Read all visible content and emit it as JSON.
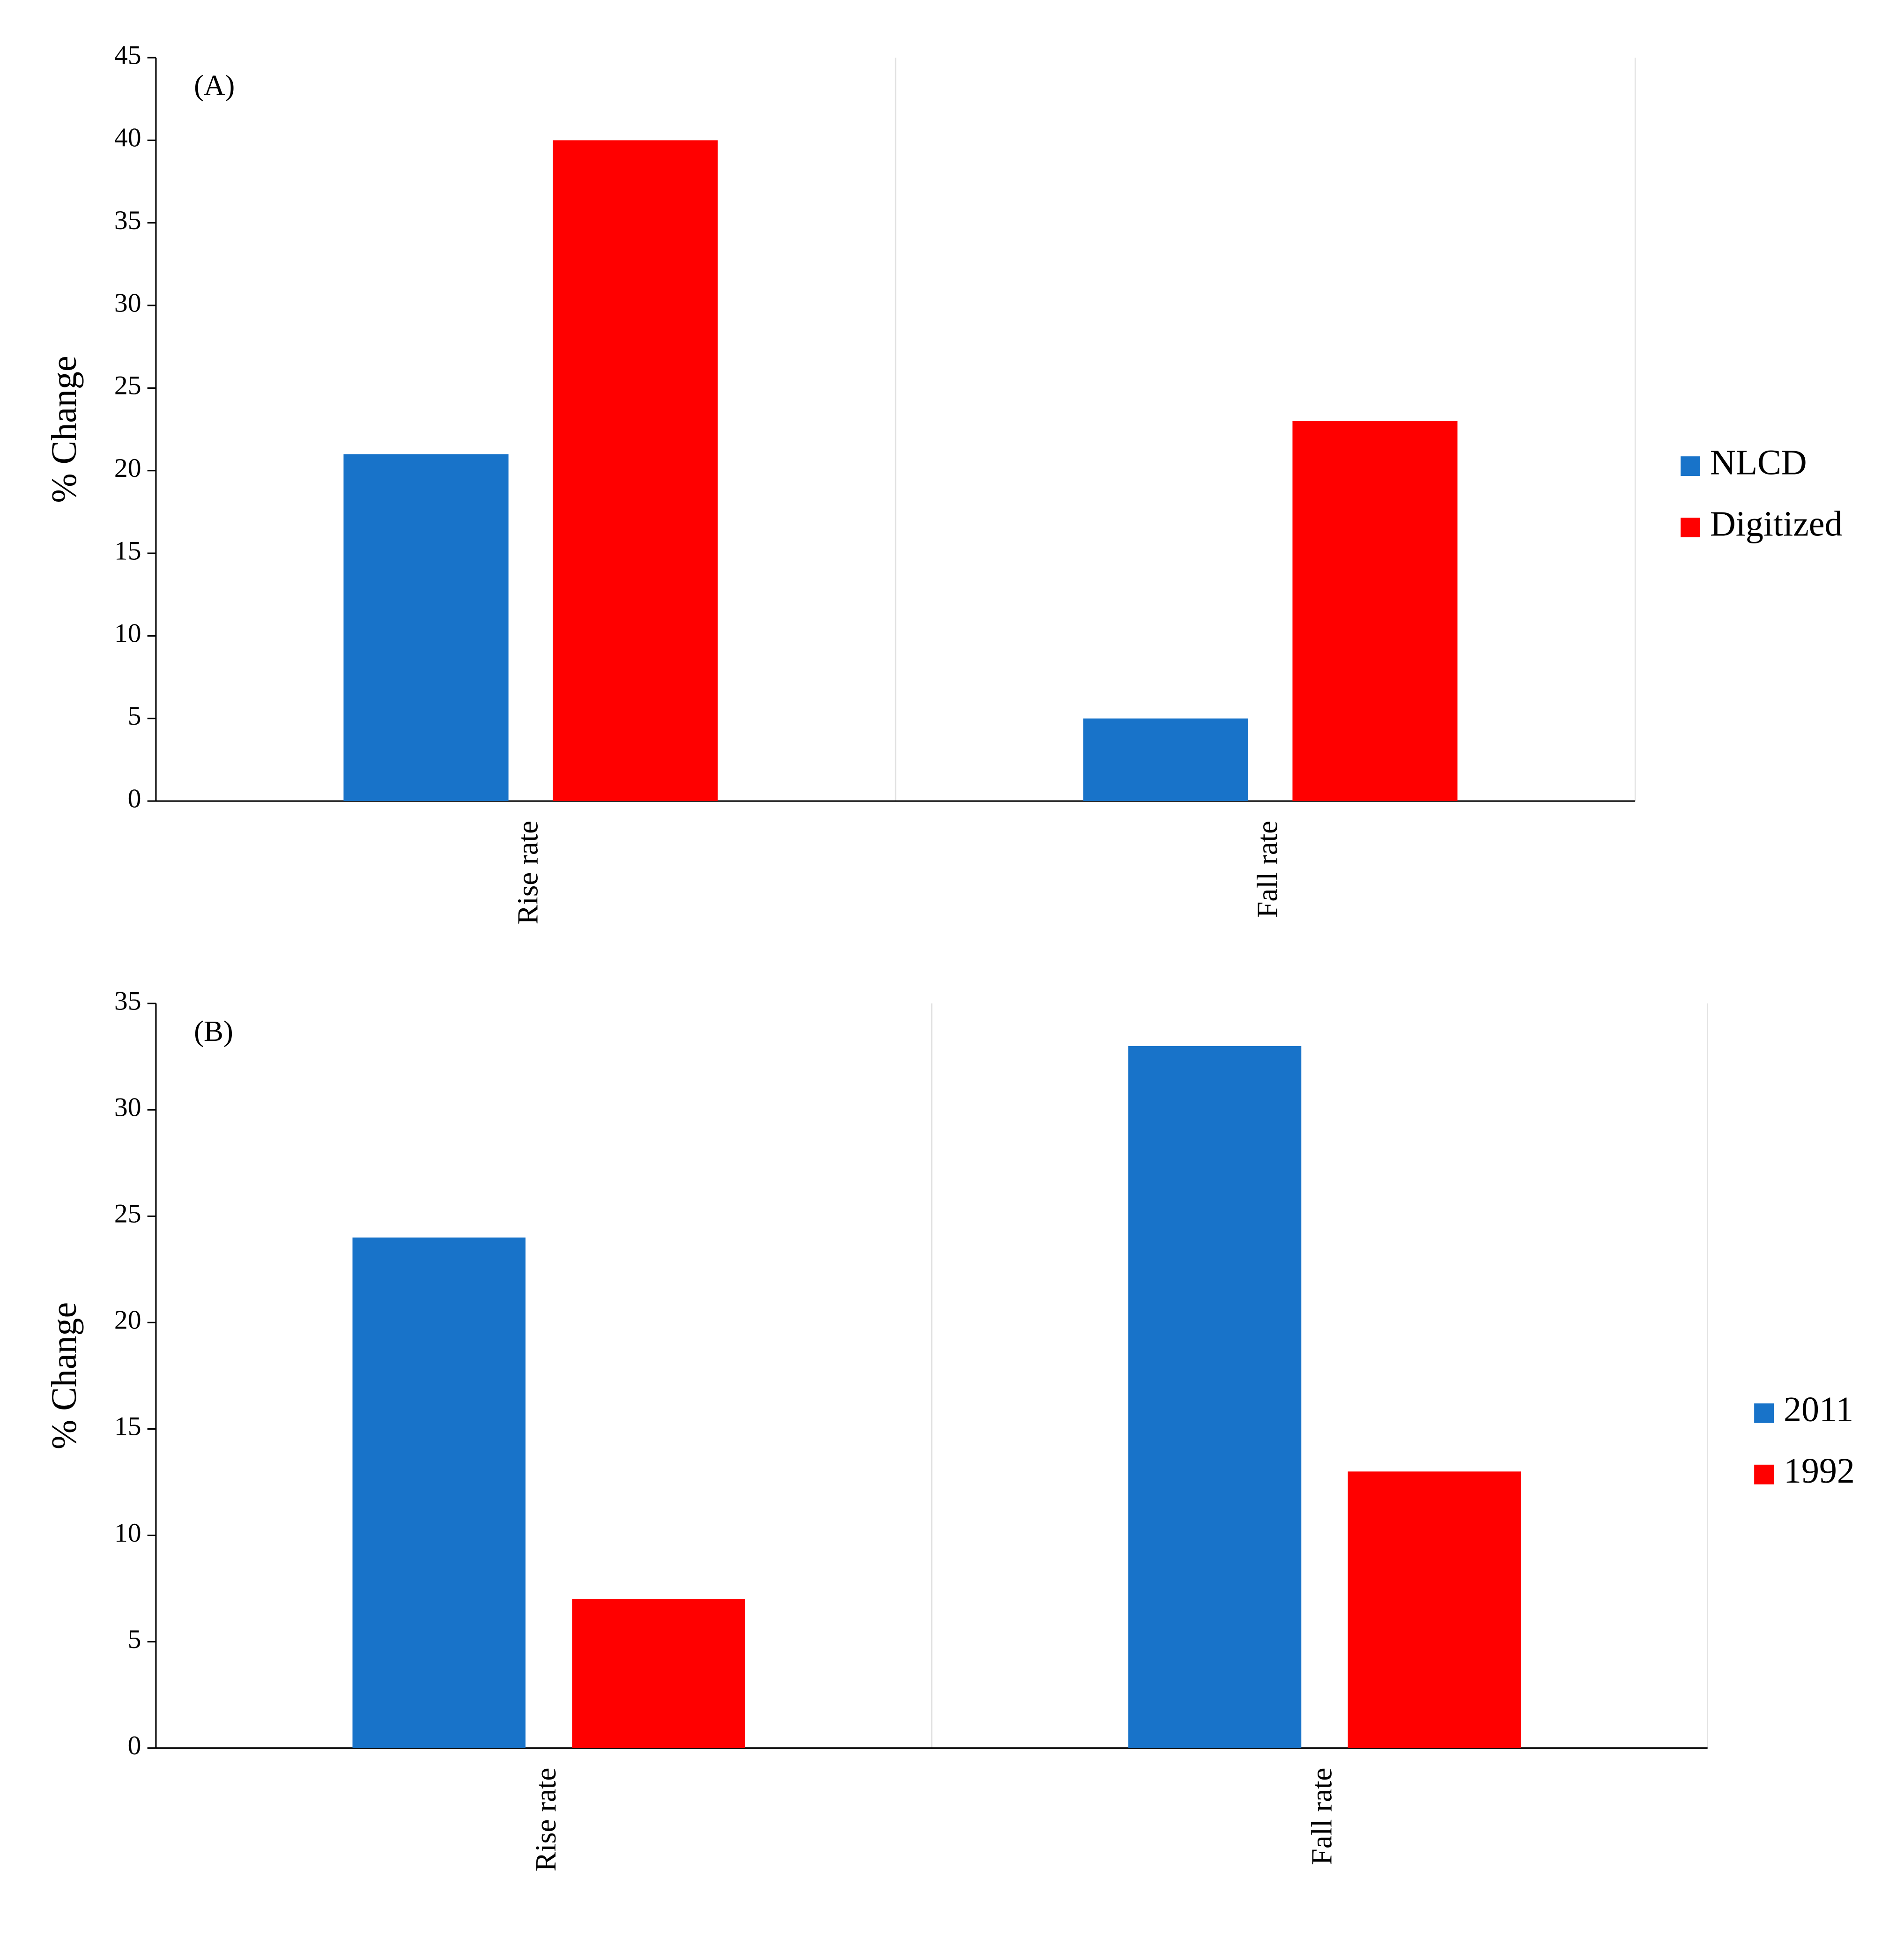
{
  "chart_data": [
    {
      "type": "bar",
      "annotation": "(A)",
      "y_label": "% Change",
      "categories": [
        "Rise rate",
        "Fall rate"
      ],
      "series": [
        {
          "name": "NLCD",
          "color": "#1873c9",
          "values": [
            21,
            5
          ]
        },
        {
          "name": "Digitized",
          "color": "#ff0000",
          "values": [
            40,
            23
          ]
        }
      ],
      "ylim": [
        0,
        45
      ],
      "yticks": [
        0,
        5,
        10,
        15,
        20,
        25,
        30,
        35,
        40,
        45
      ]
    },
    {
      "type": "bar",
      "annotation": "(B)",
      "y_label": "% Change",
      "categories": [
        "Rise rate",
        "Fall rate"
      ],
      "series": [
        {
          "name": "2011",
          "color": "#1873c9",
          "values": [
            24,
            33
          ]
        },
        {
          "name": "1992",
          "color": "#ff0000",
          "values": [
            7,
            13
          ]
        }
      ],
      "ylim": [
        0,
        35
      ],
      "yticks": [
        0,
        5,
        10,
        15,
        20,
        25,
        30,
        35
      ]
    }
  ]
}
